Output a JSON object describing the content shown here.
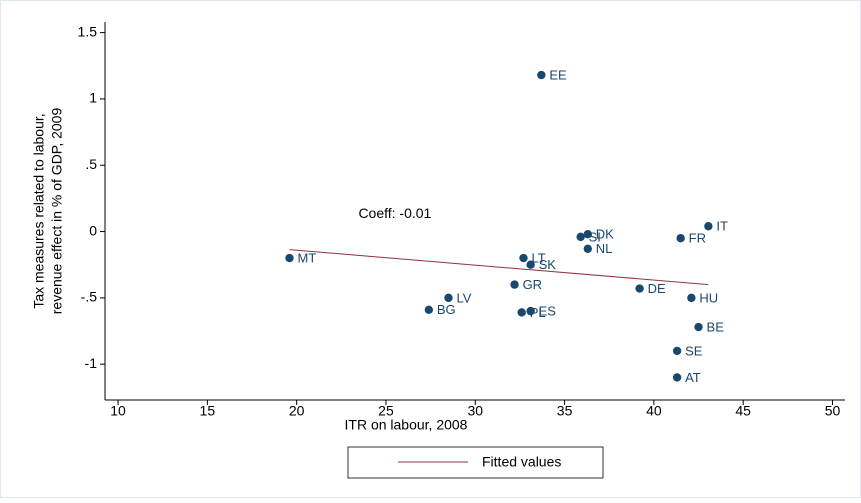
{
  "chart_data": {
    "type": "scatter",
    "x_label": "ITR on labour, 2008",
    "y_label": [
      "Tax measures related to labour,",
      "revenue effect in % of GDP, 2009"
    ],
    "annotation": {
      "text": "Coeff: -0.01",
      "x": 25.5,
      "y": 0.13
    },
    "xlim": [
      9.27,
      50.7
    ],
    "ylim": [
      -1.27,
      1.58
    ],
    "xticks": [
      10,
      15,
      20,
      25,
      30,
      35,
      40,
      45,
      50
    ],
    "yticks": [
      -1,
      {
        "value": -0.5,
        "label": "-.5"
      },
      0,
      {
        "value": 0.5,
        "label": ".5"
      },
      1,
      1.5
    ],
    "series": [
      {
        "color": "#1a476f",
        "labels": [
          "EE",
          "IT",
          "FR",
          "SI",
          "DK",
          "NL",
          "LT",
          "SK",
          "MT",
          "GR",
          "DE",
          "HU",
          "LV",
          "BG",
          "PL",
          "ES",
          "BE",
          "SE",
          "AT"
        ],
        "x": [
          33.7,
          43.05,
          41.5,
          35.9,
          36.3,
          36.3,
          32.7,
          33.1,
          19.6,
          32.2,
          39.2,
          42.1,
          28.5,
          27.4,
          32.6,
          33.1,
          42.5,
          41.3,
          41.3
        ],
        "values": [
          1.18,
          0.04,
          -0.05,
          -0.04,
          -0.02,
          -0.13,
          -0.2,
          -0.25,
          -0.2,
          -0.4,
          -0.43,
          -0.5,
          -0.5,
          -0.59,
          -0.61,
          -0.6,
          -0.72,
          -0.9,
          -1.1
        ]
      },
      {
        "name": "Fitted values",
        "kind": "line",
        "color": "#90353b",
        "x": [
          19.6,
          43.05
        ],
        "values": [
          -0.136,
          -0.4
        ]
      }
    ]
  }
}
